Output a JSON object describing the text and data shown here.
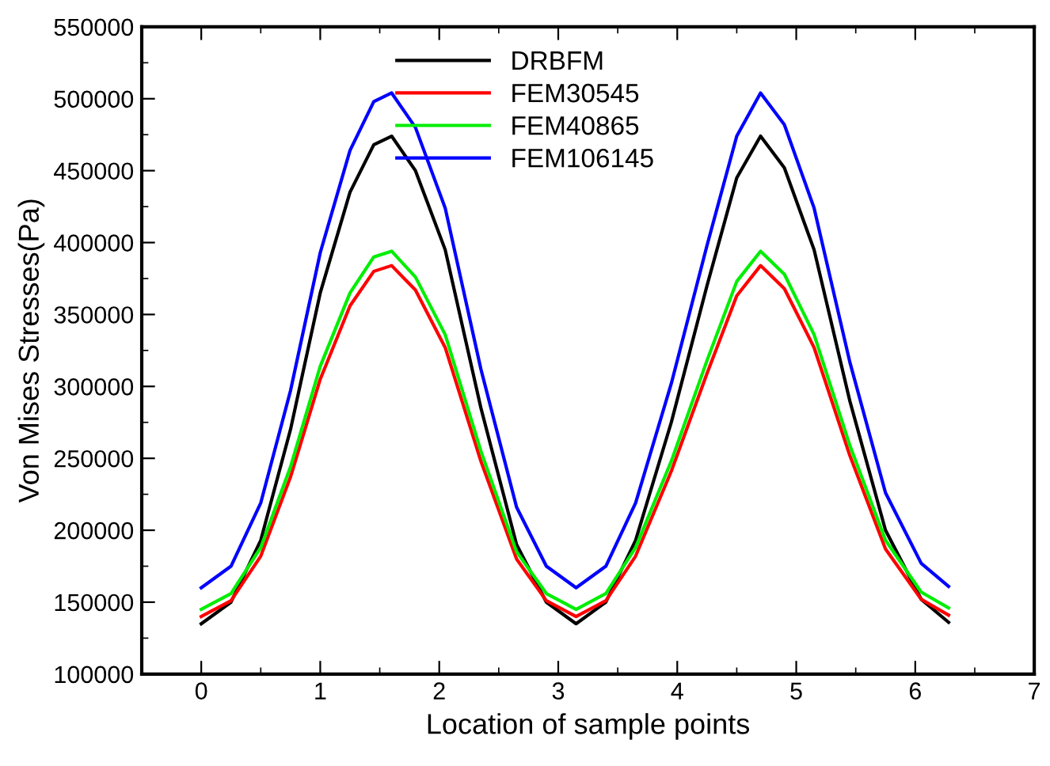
{
  "chart_data": {
    "type": "line",
    "xlabel": "Location of sample points",
    "ylabel": "Von Mises Stresses(Pa)",
    "x": [
      0,
      0.25,
      0.5,
      0.75,
      1.0,
      1.25,
      1.45,
      1.6,
      1.8,
      2.05,
      2.35,
      2.65,
      2.9,
      3.15,
      3.4,
      3.65,
      3.95,
      4.25,
      4.5,
      4.7,
      4.9,
      5.15,
      5.45,
      5.75,
      6.05,
      6.28
    ],
    "series": [
      {
        "name": "DRBFM",
        "color": "#000000",
        "values": [
          135000,
          150000,
          193000,
          270000,
          365000,
          435000,
          468000,
          474000,
          450000,
          395000,
          285000,
          190000,
          150000,
          135000,
          150000,
          193000,
          275000,
          370000,
          445000,
          474000,
          452000,
          395000,
          290000,
          200000,
          152000,
          136000
        ]
      },
      {
        "name": "FEM30545",
        "color": "#ff0000",
        "values": [
          140000,
          151000,
          182000,
          237000,
          305000,
          356000,
          380000,
          384000,
          367000,
          327000,
          248000,
          180000,
          151000,
          140000,
          151000,
          182000,
          241000,
          309000,
          363000,
          384000,
          368000,
          327000,
          252000,
          187000,
          152000,
          141000
        ]
      },
      {
        "name": "FEM40865",
        "color": "#00ee00",
        "values": [
          145000,
          156000,
          188000,
          244000,
          314000,
          365000,
          390000,
          394000,
          376000,
          336000,
          255000,
          185000,
          156000,
          145000,
          156000,
          188000,
          248000,
          318000,
          373000,
          394000,
          378000,
          336000,
          259000,
          193000,
          157000,
          146000
        ]
      },
      {
        "name": "FEM106145",
        "color": "#0000ff",
        "values": [
          160000,
          175000,
          219000,
          297000,
          393000,
          464000,
          498000,
          504000,
          480000,
          424000,
          312000,
          216000,
          175000,
          160000,
          175000,
          219000,
          302000,
          398000,
          474000,
          504000,
          482000,
          424000,
          317000,
          226000,
          177000,
          161000
        ]
      }
    ],
    "xlim": [
      -0.5,
      7
    ],
    "xticks": [
      0,
      1,
      2,
      3,
      4,
      5,
      6,
      7
    ],
    "ylim": [
      100000,
      550000
    ],
    "yticks": [
      100000,
      150000,
      200000,
      250000,
      300000,
      350000,
      400000,
      450000,
      500000,
      550000
    ],
    "legend": "top",
    "grid": false,
    "marker": "none",
    "line_style": "solid"
  }
}
